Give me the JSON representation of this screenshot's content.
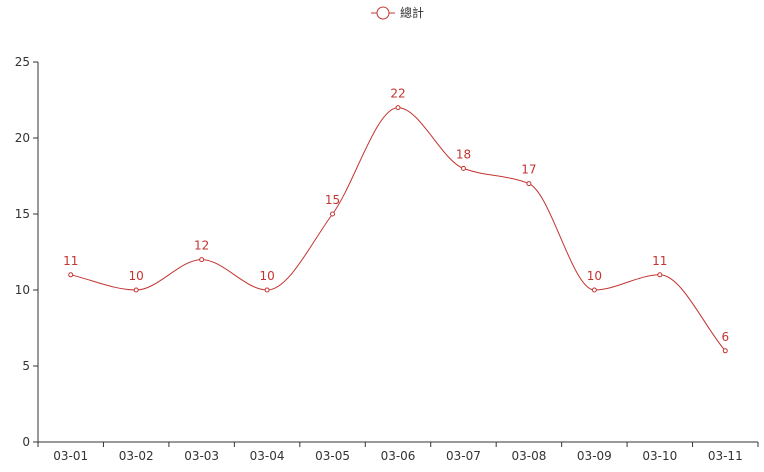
{
  "chart_data": {
    "type": "line",
    "smooth": true,
    "categories": [
      "03-01",
      "03-02",
      "03-03",
      "03-04",
      "03-05",
      "03-06",
      "03-07",
      "03-08",
      "03-09",
      "03-10",
      "03-11"
    ],
    "series": [
      {
        "name": "總計",
        "values": [
          11,
          10,
          12,
          10,
          15,
          22,
          18,
          17,
          10,
          11,
          6
        ],
        "color": "#c23531",
        "show_labels": true
      }
    ],
    "ylim": [
      0,
      25
    ],
    "yticks": [
      0,
      5,
      10,
      15,
      20,
      25
    ],
    "grid": false,
    "legend_position": "top-center"
  }
}
